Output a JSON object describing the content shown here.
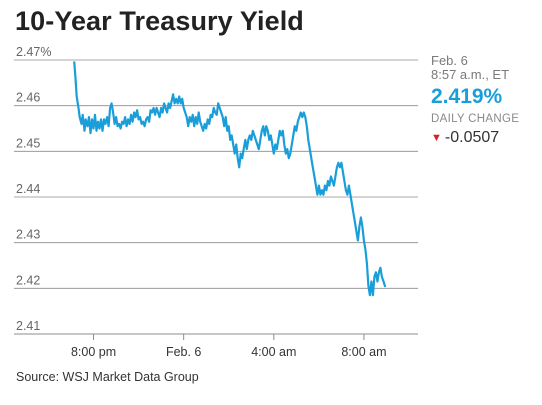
{
  "title": "10-Year Treasury Yield",
  "info": {
    "date": "Feb. 6",
    "time": "8:57 a.m., ET",
    "value": "2.419%",
    "change_label": "DAILY CHANGE",
    "change": "-0.0507"
  },
  "source": "Source: WSJ Market Data Group",
  "colors": {
    "line": "#1a9ed9",
    "value": "#1a9ed9",
    "down_arrow": "#d4232b",
    "grid": "#8c8c8c"
  },
  "chart_data": {
    "type": "line",
    "title": "10-Year Treasury Yield",
    "xlabel": "",
    "ylabel": "",
    "ylim": [
      2.41,
      2.47
    ],
    "xlim": [
      -0.75,
      10.8
    ],
    "x_unit": "hours after 8:00 pm",
    "y_ticks": [
      {
        "value": 2.47,
        "label": "2.47%"
      },
      {
        "value": 2.46,
        "label": "2.46"
      },
      {
        "value": 2.45,
        "label": "2.45"
      },
      {
        "value": 2.44,
        "label": "2.44"
      },
      {
        "value": 2.43,
        "label": "2.43"
      },
      {
        "value": 2.42,
        "label": "2.42"
      },
      {
        "value": 2.41,
        "label": "2.41"
      }
    ],
    "x_ticks": [
      {
        "value": 0,
        "label": "8:00 pm"
      },
      {
        "value": 3,
        "label": "Feb. 6"
      },
      {
        "value": 6,
        "label": "4:00 am"
      },
      {
        "value": 9,
        "label": "8:00 am"
      }
    ],
    "grid": {
      "horizontal": true,
      "vertical": false
    },
    "series": [
      {
        "values": [
          [
            -0.64,
            2.4695
          ],
          [
            -0.6,
            2.466
          ],
          [
            -0.56,
            2.462
          ],
          [
            -0.5,
            2.4595
          ],
          [
            -0.46,
            2.4575
          ],
          [
            -0.4,
            2.456
          ],
          [
            -0.36,
            2.458
          ],
          [
            -0.3,
            2.4545
          ],
          [
            -0.26,
            2.457
          ],
          [
            -0.2,
            2.4555
          ],
          [
            -0.15,
            2.4575
          ],
          [
            -0.1,
            2.454
          ],
          [
            -0.05,
            2.457
          ],
          [
            0.0,
            2.455
          ],
          [
            0.05,
            2.458
          ],
          [
            0.1,
            2.4545
          ],
          [
            0.15,
            2.4565
          ],
          [
            0.2,
            2.455
          ],
          [
            0.25,
            2.457
          ],
          [
            0.3,
            2.4545
          ],
          [
            0.35,
            2.457
          ],
          [
            0.4,
            2.456
          ],
          [
            0.45,
            2.4575
          ],
          [
            0.5,
            2.4555
          ],
          [
            0.55,
            2.4595
          ],
          [
            0.6,
            2.4605
          ],
          [
            0.65,
            2.4585
          ],
          [
            0.7,
            2.456
          ],
          [
            0.75,
            2.4575
          ],
          [
            0.8,
            2.4555
          ],
          [
            0.85,
            2.456
          ],
          [
            0.9,
            2.455
          ],
          [
            0.95,
            2.4565
          ],
          [
            1.0,
            2.456
          ],
          [
            1.05,
            2.4575
          ],
          [
            1.1,
            2.4555
          ],
          [
            1.15,
            2.457
          ],
          [
            1.2,
            2.456
          ],
          [
            1.25,
            2.458
          ],
          [
            1.3,
            2.4565
          ],
          [
            1.35,
            2.4585
          ],
          [
            1.4,
            2.4575
          ],
          [
            1.45,
            2.459
          ],
          [
            1.5,
            2.457
          ],
          [
            1.55,
            2.4575
          ],
          [
            1.6,
            2.456
          ],
          [
            1.65,
            2.4565
          ],
          [
            1.7,
            2.4555
          ],
          [
            1.75,
            2.457
          ],
          [
            1.8,
            2.4575
          ],
          [
            1.85,
            2.4565
          ],
          [
            1.9,
            2.459
          ],
          [
            1.95,
            2.4585
          ],
          [
            2.0,
            2.4595
          ],
          [
            2.05,
            2.458
          ],
          [
            2.1,
            2.4595
          ],
          [
            2.15,
            2.4585
          ],
          [
            2.2,
            2.4575
          ],
          [
            2.25,
            2.4595
          ],
          [
            2.3,
            2.4585
          ],
          [
            2.35,
            2.4605
          ],
          [
            2.4,
            2.4595
          ],
          [
            2.45,
            2.4585
          ],
          [
            2.5,
            2.4605
          ],
          [
            2.55,
            2.4595
          ],
          [
            2.6,
            2.461
          ],
          [
            2.65,
            2.4625
          ],
          [
            2.7,
            2.4605
          ],
          [
            2.75,
            2.4615
          ],
          [
            2.8,
            2.4605
          ],
          [
            2.85,
            2.462
          ],
          [
            2.9,
            2.4605
          ],
          [
            2.95,
            2.4615
          ],
          [
            3.0,
            2.4595
          ],
          [
            3.05,
            2.4585
          ],
          [
            3.1,
            2.4575
          ],
          [
            3.15,
            2.4555
          ],
          [
            3.2,
            2.4575
          ],
          [
            3.25,
            2.4565
          ],
          [
            3.3,
            2.458
          ],
          [
            3.35,
            2.4555
          ],
          [
            3.4,
            2.4575
          ],
          [
            3.45,
            2.456
          ],
          [
            3.5,
            2.4585
          ],
          [
            3.55,
            2.4565
          ],
          [
            3.6,
            2.4555
          ],
          [
            3.65,
            2.4545
          ],
          [
            3.7,
            2.456
          ],
          [
            3.75,
            2.455
          ],
          [
            3.8,
            2.457
          ],
          [
            3.85,
            2.456
          ],
          [
            3.9,
            2.458
          ],
          [
            3.95,
            2.4575
          ],
          [
            4.0,
            2.4595
          ],
          [
            4.05,
            2.4585
          ],
          [
            4.1,
            2.458
          ],
          [
            4.15,
            2.4605
          ],
          [
            4.2,
            2.4595
          ],
          [
            4.25,
            2.4585
          ],
          [
            4.3,
            2.4575
          ],
          [
            4.35,
            2.4555
          ],
          [
            4.4,
            2.4575
          ],
          [
            4.45,
            2.4545
          ],
          [
            4.5,
            2.4555
          ],
          [
            4.55,
            2.4525
          ],
          [
            4.6,
            2.4535
          ],
          [
            4.65,
            2.4515
          ],
          [
            4.7,
            2.4495
          ],
          [
            4.75,
            2.4515
          ],
          [
            4.8,
            2.4485
          ],
          [
            4.85,
            2.4465
          ],
          [
            4.9,
            2.4495
          ],
          [
            4.95,
            2.4485
          ],
          [
            5.0,
            2.4505
          ],
          [
            5.05,
            2.4525
          ],
          [
            5.1,
            2.4505
          ],
          [
            5.15,
            2.4525
          ],
          [
            5.2,
            2.4535
          ],
          [
            5.25,
            2.4525
          ],
          [
            5.3,
            2.4545
          ],
          [
            5.35,
            2.4535
          ],
          [
            5.4,
            2.4525
          ],
          [
            5.45,
            2.4515
          ],
          [
            5.5,
            2.4505
          ],
          [
            5.55,
            2.4525
          ],
          [
            5.6,
            2.4545
          ],
          [
            5.65,
            2.4555
          ],
          [
            5.7,
            2.4535
          ],
          [
            5.75,
            2.4555
          ],
          [
            5.8,
            2.4545
          ],
          [
            5.85,
            2.4525
          ],
          [
            5.9,
            2.4535
          ],
          [
            5.95,
            2.4515
          ],
          [
            6.0,
            2.4495
          ],
          [
            6.05,
            2.4515
          ],
          [
            6.1,
            2.4505
          ],
          [
            6.15,
            2.4525
          ],
          [
            6.2,
            2.4545
          ],
          [
            6.25,
            2.4535
          ],
          [
            6.3,
            2.4545
          ],
          [
            6.35,
            2.4515
          ],
          [
            6.4,
            2.4495
          ],
          [
            6.45,
            2.4505
          ],
          [
            6.5,
            2.4485
          ],
          [
            6.55,
            2.4495
          ],
          [
            6.6,
            2.4515
          ],
          [
            6.65,
            2.4535
          ],
          [
            6.7,
            2.4555
          ],
          [
            6.75,
            2.4545
          ],
          [
            6.8,
            2.4565
          ],
          [
            6.85,
            2.4575
          ],
          [
            6.9,
            2.4585
          ],
          [
            6.95,
            2.4575
          ],
          [
            7.0,
            2.4585
          ],
          [
            7.05,
            2.4575
          ],
          [
            7.1,
            2.4555
          ],
          [
            7.15,
            2.4525
          ],
          [
            7.2,
            2.4505
          ],
          [
            7.25,
            2.4485
          ],
          [
            7.3,
            2.4465
          ],
          [
            7.35,
            2.4445
          ],
          [
            7.4,
            2.4425
          ],
          [
            7.45,
            2.4405
          ],
          [
            7.5,
            2.4425
          ],
          [
            7.55,
            2.4405
          ],
          [
            7.6,
            2.4415
          ],
          [
            7.65,
            2.4405
          ],
          [
            7.7,
            2.4425
          ],
          [
            7.75,
            2.4415
          ],
          [
            7.8,
            2.4435
          ],
          [
            7.85,
            2.4425
          ],
          [
            7.9,
            2.4445
          ],
          [
            7.95,
            2.4435
          ],
          [
            8.0,
            2.4425
          ],
          [
            8.05,
            2.4445
          ],
          [
            8.1,
            2.4465
          ],
          [
            8.15,
            2.4475
          ],
          [
            8.2,
            2.4465
          ],
          [
            8.25,
            2.4475
          ],
          [
            8.3,
            2.4455
          ],
          [
            8.35,
            2.4435
          ],
          [
            8.4,
            2.4415
          ],
          [
            8.45,
            2.4405
          ],
          [
            8.5,
            2.4425
          ],
          [
            8.55,
            2.4405
          ],
          [
            8.6,
            2.4385
          ],
          [
            8.65,
            2.4365
          ],
          [
            8.7,
            2.4345
          ],
          [
            8.75,
            2.4325
          ],
          [
            8.8,
            2.4305
          ],
          [
            8.85,
            2.4335
          ],
          [
            8.9,
            2.4355
          ],
          [
            8.95,
            2.4335
          ],
          [
            9.0,
            2.4305
          ],
          [
            9.05,
            2.4285
          ],
          [
            9.1,
            2.4255
          ],
          [
            9.15,
            2.4205
          ],
          [
            9.2,
            2.4185
          ],
          [
            9.25,
            2.4215
          ],
          [
            9.3,
            2.4185
          ],
          [
            9.35,
            2.4225
          ],
          [
            9.4,
            2.4235
          ],
          [
            9.45,
            2.4215
          ],
          [
            9.5,
            2.4235
          ],
          [
            9.55,
            2.4245
          ],
          [
            9.6,
            2.4225
          ],
          [
            9.65,
            2.4215
          ],
          [
            9.7,
            2.4205
          ]
        ]
      }
    ]
  }
}
